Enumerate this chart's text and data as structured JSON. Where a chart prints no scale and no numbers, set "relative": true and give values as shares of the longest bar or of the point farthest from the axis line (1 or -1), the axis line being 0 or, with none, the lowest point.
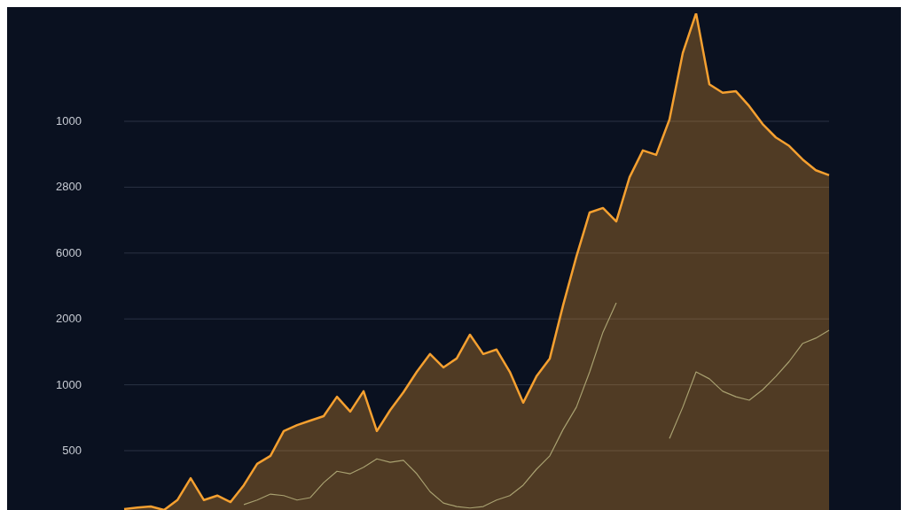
{
  "chart_data": {
    "type": "area",
    "relative": true,
    "grid": "y",
    "annotations": [
      "1000",
      "2800",
      "6000",
      "2000",
      "1000",
      "500"
    ],
    "categories": [
      null,
      null,
      null,
      null,
      null,
      null,
      null,
      null,
      null,
      null,
      null,
      null,
      null,
      null,
      null,
      null,
      null,
      null,
      null,
      null,
      null,
      null,
      null,
      null,
      null,
      null,
      null,
      null,
      null,
      null,
      null,
      null,
      null,
      null,
      null,
      null,
      null,
      null,
      null,
      null,
      null,
      null,
      null,
      null,
      null,
      null,
      null,
      null,
      null,
      null,
      null,
      null,
      null,
      null
    ],
    "series": [
      {
        "color": "#f5a030",
        "values": [
          0.002,
          0.005,
          0.007,
          0,
          0.02,
          0.064,
          0.02,
          0.029,
          0.016,
          0.05,
          0.093,
          0.109,
          0.159,
          0.171,
          0.18,
          0.189,
          0.228,
          0.198,
          0.239,
          0.159,
          0.201,
          0.237,
          0.278,
          0.314,
          0.287,
          0.305,
          0.353,
          0.314,
          0.323,
          0.278,
          0.216,
          0.269,
          0.305,
          0.412,
          0.51,
          0.599,
          0.608,
          0.581,
          0.67,
          0.724,
          0.715,
          0.786,
          0.92,
          1,
          0.857,
          0.84,
          0.843,
          0.813,
          0.777,
          0.75,
          0.733,
          0.706,
          0.684,
          0.674
        ]
      },
      {
        "type": "line",
        "color": "#a8a070",
        "values": [
          null,
          null,
          null,
          null,
          null,
          null,
          null,
          null,
          null,
          0.011,
          0.02,
          0.032,
          0.029,
          0.02,
          0.025,
          0.055,
          0.078,
          0.073,
          0.086,
          0.103,
          0.096,
          0.1,
          0.073,
          0.037,
          0.014,
          0.007,
          0.004,
          0.007,
          0.02,
          0.029,
          0.05,
          0.082,
          0.109,
          0.162,
          0.207,
          0.278,
          0.358,
          0.417,
          null,
          null,
          null,
          0.144,
          0.207,
          0.278,
          0.264,
          0.239,
          0.228,
          0.221,
          0.242,
          0.269,
          0.299,
          0.335,
          0.346,
          0.362
        ]
      }
    ]
  }
}
